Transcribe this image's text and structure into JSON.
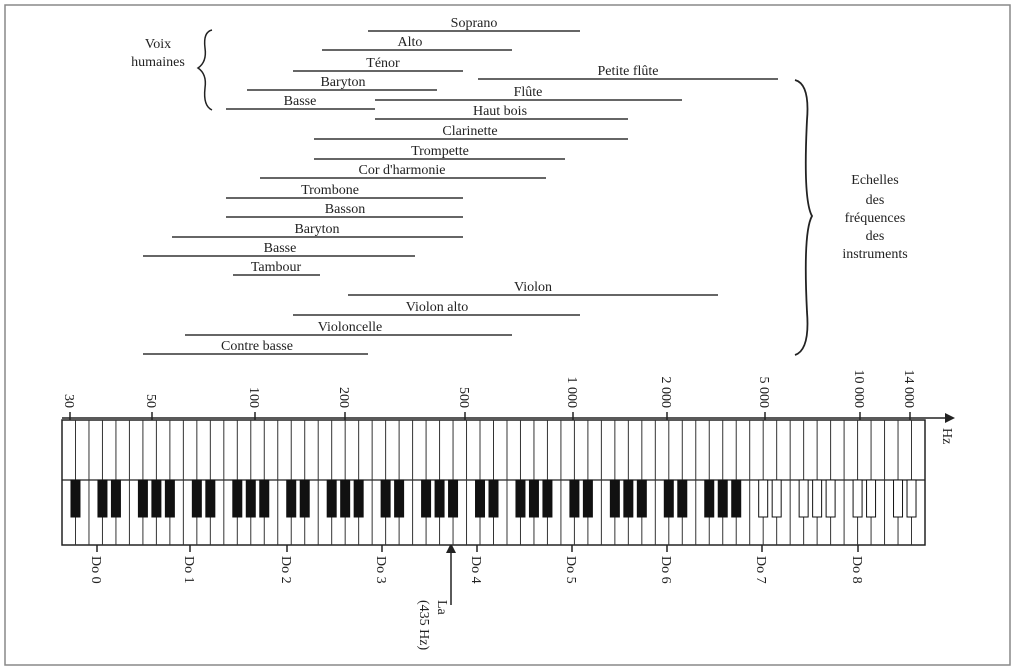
{
  "voices_label": [
    "Voix",
    "humaines"
  ],
  "instruments_label": [
    "Echelles",
    "des",
    "fréquences",
    "des",
    "instruments"
  ],
  "ranges": [
    {
      "label": "Soprano"
    },
    {
      "label": "Alto"
    },
    {
      "label": "Ténor"
    },
    {
      "label": "Petite flûte"
    },
    {
      "label": "Baryton"
    },
    {
      "label": "Flûte"
    },
    {
      "label": "Basse"
    },
    {
      "label": "Haut bois"
    },
    {
      "label": "Clarinette"
    },
    {
      "label": "Trompette"
    },
    {
      "label": "Cor d'harmonie"
    },
    {
      "label": "Trombone"
    },
    {
      "label": "Basson"
    },
    {
      "label": "Baryton"
    },
    {
      "label": "Basse"
    },
    {
      "label": "Tambour"
    },
    {
      "label": "Violon"
    },
    {
      "label": "Violon alto"
    },
    {
      "label": "Violoncelle"
    },
    {
      "label": "Contre basse"
    }
  ],
  "axis": {
    "unit": "Hz",
    "ticks": [
      "30",
      "50",
      "100",
      "200",
      "500",
      "1 000",
      "2 000",
      "5 000",
      "10 000",
      "14 000"
    ]
  },
  "keyboard": {
    "octaves": [
      "Do 0",
      "Do 1",
      "Do 2",
      "Do 3",
      "Do 4",
      "Do 5",
      "Do 6",
      "Do 7",
      "Do 8"
    ],
    "la_marker": [
      "La",
      "(435 Hz)"
    ]
  }
}
